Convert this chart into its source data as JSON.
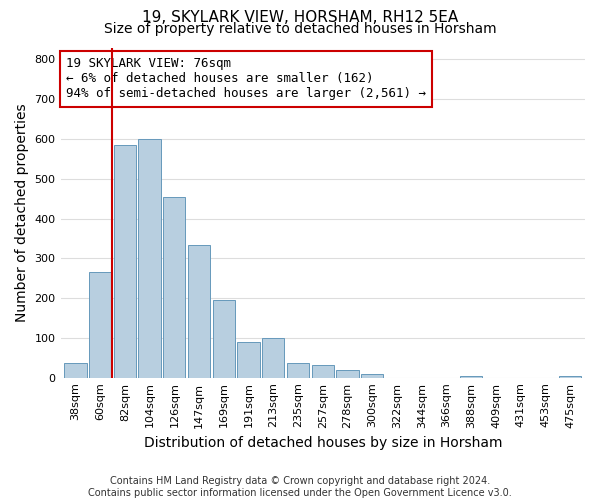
{
  "title": "19, SKYLARK VIEW, HORSHAM, RH12 5EA",
  "subtitle": "Size of property relative to detached houses in Horsham",
  "xlabel": "Distribution of detached houses by size in Horsham",
  "ylabel": "Number of detached properties",
  "categories": [
    "38sqm",
    "60sqm",
    "82sqm",
    "104sqm",
    "126sqm",
    "147sqm",
    "169sqm",
    "191sqm",
    "213sqm",
    "235sqm",
    "257sqm",
    "278sqm",
    "300sqm",
    "322sqm",
    "344sqm",
    "366sqm",
    "388sqm",
    "409sqm",
    "431sqm",
    "453sqm",
    "475sqm"
  ],
  "values": [
    38,
    265,
    585,
    600,
    453,
    333,
    195,
    90,
    100,
    38,
    32,
    20,
    10,
    0,
    0,
    0,
    5,
    0,
    0,
    0,
    5
  ],
  "bar_color": "#b8cfe0",
  "bar_edge_color": "#6699bb",
  "property_line_color": "#cc0000",
  "annotation_text": "19 SKYLARK VIEW: 76sqm\n← 6% of detached houses are smaller (162)\n94% of semi-detached houses are larger (2,561) →",
  "annotation_box_color": "#ffffff",
  "annotation_box_edge": "#cc0000",
  "ylim": [
    0,
    830
  ],
  "yticks": [
    0,
    100,
    200,
    300,
    400,
    500,
    600,
    700,
    800
  ],
  "footer_line1": "Contains HM Land Registry data © Crown copyright and database right 2024.",
  "footer_line2": "Contains public sector information licensed under the Open Government Licence v3.0.",
  "background_color": "#ffffff",
  "plot_background": "#ffffff",
  "grid_color": "#dddddd",
  "title_fontsize": 11,
  "subtitle_fontsize": 10,
  "axis_label_fontsize": 10,
  "tick_fontsize": 8,
  "annotation_fontsize": 9,
  "footer_fontsize": 7
}
